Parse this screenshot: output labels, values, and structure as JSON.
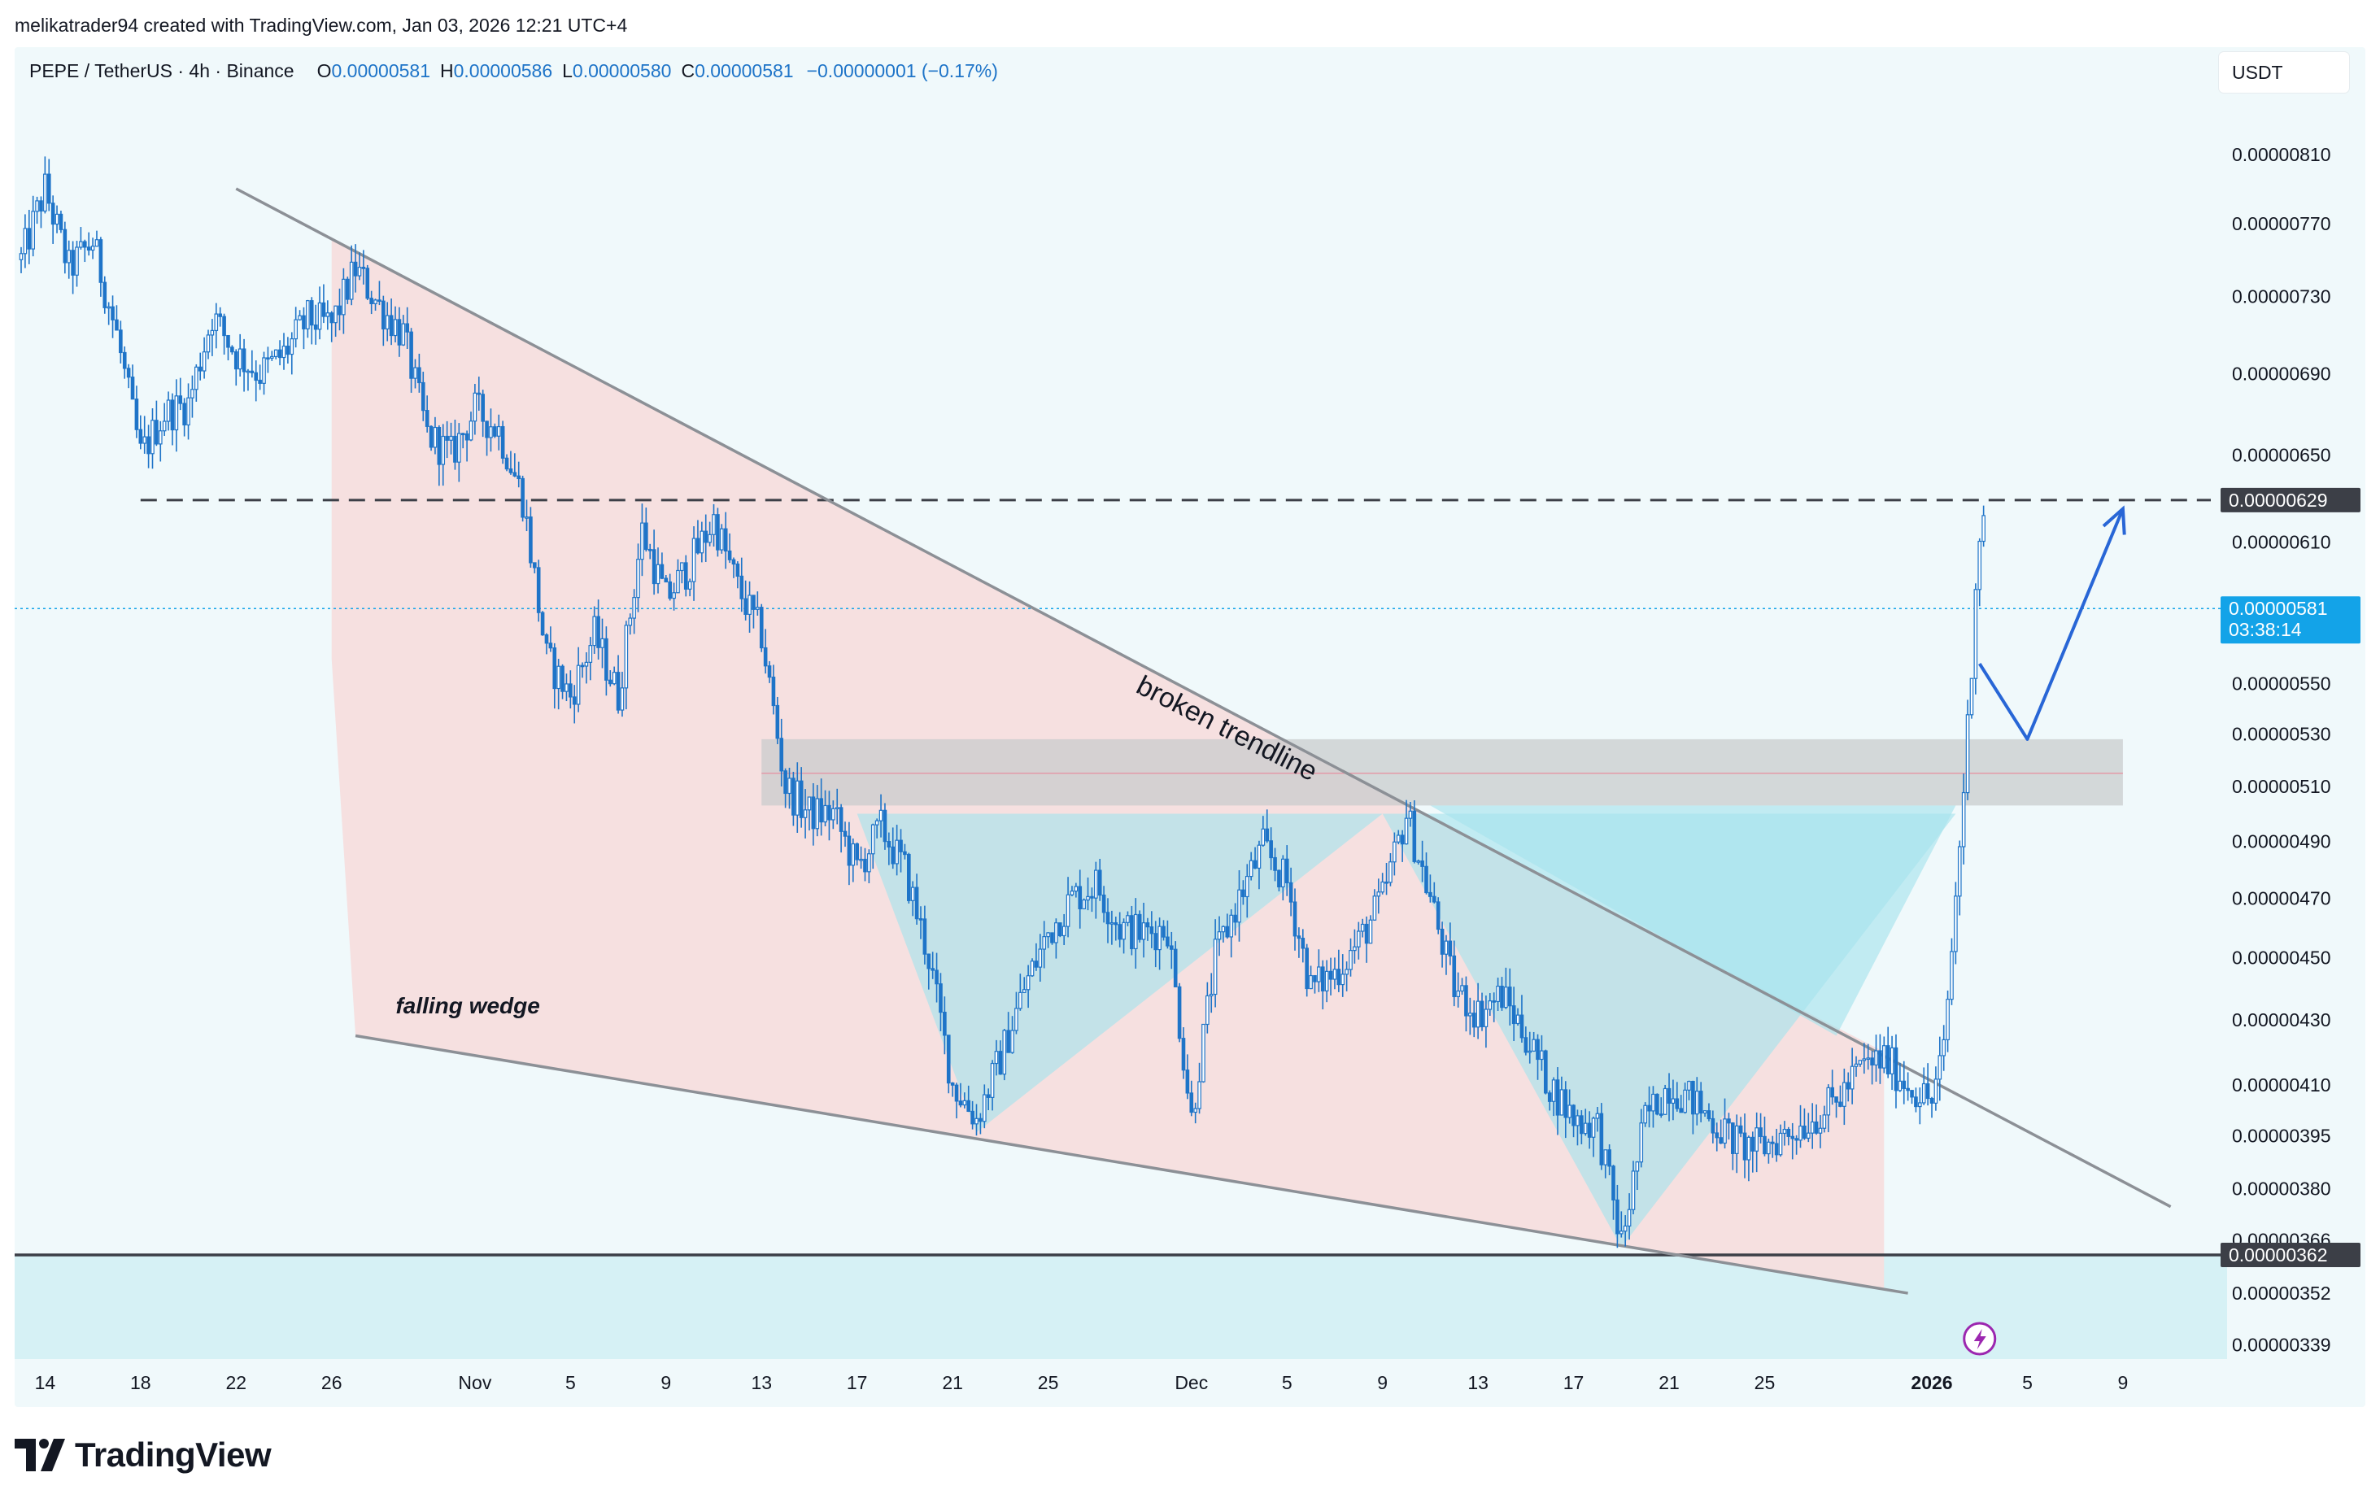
{
  "credit": "melikatrader94 created with TradingView.com, Jan 03, 2026 12:21 UTC+4",
  "legend": {
    "symbol": "PEPE / TetherUS · 4h · Binance",
    "o_label": "O",
    "o": "0.00000581",
    "h_label": "H",
    "h": "0.00000586",
    "l_label": "L",
    "l": "0.00000580",
    "c_label": "C",
    "c": "0.00000581",
    "change": "−0.00000001 (−0.17%)"
  },
  "currency": "USDT",
  "logo": "TradingView",
  "colors": {
    "up": "#1e74c8",
    "down": "#1e74c8",
    "wedge_fill": "#f6dede",
    "pattern_fill": "#a8e4ec",
    "zone_fill": "#c9cccd",
    "trendline": "#8c9096",
    "last_price_tag": "#13a3e8",
    "level_tag": "#3c3f47",
    "projection": "#2866d6"
  },
  "chart_data": {
    "type": "candlestick",
    "title": "PEPE / TetherUS · 4h · Binance",
    "timeframe": "4h",
    "y_axis": {
      "scale": "log",
      "ticks": [
        "0.00000810",
        "0.00000770",
        "0.00000730",
        "0.00000690",
        "0.00000650",
        "0.00000610",
        "0.00000550",
        "0.00000530",
        "0.00000510",
        "0.00000490",
        "0.00000470",
        "0.00000450",
        "0.00000430",
        "0.00000410",
        "0.00000395",
        "0.00000380",
        "0.00000366",
        "0.00000352",
        "0.00000339"
      ]
    },
    "x_axis": {
      "range": [
        "2025-10-13",
        "2026-01-12"
      ],
      "ticks": [
        {
          "date": "2025-10-14",
          "label": "14"
        },
        {
          "date": "2025-10-18",
          "label": "18"
        },
        {
          "date": "2025-10-22",
          "label": "22"
        },
        {
          "date": "2025-10-26",
          "label": "26"
        },
        {
          "date": "2025-11-01",
          "label": "Nov"
        },
        {
          "date": "2025-11-05",
          "label": "5"
        },
        {
          "date": "2025-11-09",
          "label": "9"
        },
        {
          "date": "2025-11-13",
          "label": "13"
        },
        {
          "date": "2025-11-17",
          "label": "17"
        },
        {
          "date": "2025-11-21",
          "label": "21"
        },
        {
          "date": "2025-11-25",
          "label": "25"
        },
        {
          "date": "2025-12-01",
          "label": "Dec"
        },
        {
          "date": "2025-12-05",
          "label": "5"
        },
        {
          "date": "2025-12-09",
          "label": "9"
        },
        {
          "date": "2025-12-13",
          "label": "13"
        },
        {
          "date": "2025-12-17",
          "label": "17"
        },
        {
          "date": "2025-12-21",
          "label": "21"
        },
        {
          "date": "2025-12-25",
          "label": "25"
        },
        {
          "date": "2026-01-01",
          "label": "2026"
        },
        {
          "date": "2026-01-05",
          "label": "5"
        },
        {
          "date": "2026-01-09",
          "label": "9"
        }
      ]
    },
    "price_path": [
      {
        "t": "2025-10-13",
        "p": 7.5e-06
      },
      {
        "t": "2025-10-14",
        "p": 7.9e-06
      },
      {
        "t": "2025-10-15",
        "p": 7.45e-06
      },
      {
        "t": "2025-10-16",
        "p": 7.6e-06
      },
      {
        "t": "2025-10-17",
        "p": 7.1e-06
      },
      {
        "t": "2025-10-18",
        "p": 6.5e-06
      },
      {
        "t": "2025-10-19",
        "p": 6.7e-06
      },
      {
        "t": "2025-10-20",
        "p": 6.75e-06
      },
      {
        "t": "2025-10-21",
        "p": 7.2e-06
      },
      {
        "t": "2025-10-22",
        "p": 7e-06
      },
      {
        "t": "2025-10-23",
        "p": 6.9e-06
      },
      {
        "t": "2025-10-24",
        "p": 7e-06
      },
      {
        "t": "2025-10-25",
        "p": 7.18e-06
      },
      {
        "t": "2025-10-26",
        "p": 7.15e-06
      },
      {
        "t": "2025-10-27",
        "p": 7.45e-06
      },
      {
        "t": "2025-10-28",
        "p": 7.25e-06
      },
      {
        "t": "2025-10-29",
        "p": 7.1e-06
      },
      {
        "t": "2025-10-30",
        "p": 6.6e-06
      },
      {
        "t": "2025-10-31",
        "p": 6.5e-06
      },
      {
        "t": "2025-11-01",
        "p": 6.72e-06
      },
      {
        "t": "2025-11-02",
        "p": 6.62e-06
      },
      {
        "t": "2025-11-03",
        "p": 6.3e-06
      },
      {
        "t": "2025-11-04",
        "p": 5.6e-06
      },
      {
        "t": "2025-11-05",
        "p": 5.45e-06
      },
      {
        "t": "2025-11-06",
        "p": 5.7e-06
      },
      {
        "t": "2025-11-07",
        "p": 5.45e-06
      },
      {
        "t": "2025-11-08",
        "p": 6.15e-06
      },
      {
        "t": "2025-11-09",
        "p": 5.85e-06
      },
      {
        "t": "2025-11-10",
        "p": 6e-06
      },
      {
        "t": "2025-11-11",
        "p": 6.2e-06
      },
      {
        "t": "2025-11-12",
        "p": 5.9e-06
      },
      {
        "t": "2025-11-13",
        "p": 5.7e-06
      },
      {
        "t": "2025-11-14",
        "p": 5.1e-06
      },
      {
        "t": "2025-11-15",
        "p": 5e-06
      },
      {
        "t": "2025-11-16",
        "p": 5e-06
      },
      {
        "t": "2025-11-17",
        "p": 4.8e-06
      },
      {
        "t": "2025-11-18",
        "p": 4.95e-06
      },
      {
        "t": "2025-11-19",
        "p": 4.8e-06
      },
      {
        "t": "2025-11-20",
        "p": 4.5e-06
      },
      {
        "t": "2025-11-21",
        "p": 4.1e-06
      },
      {
        "t": "2025-11-22",
        "p": 4e-06
      },
      {
        "t": "2025-11-23",
        "p": 4.18e-06
      },
      {
        "t": "2025-11-24",
        "p": 4.4e-06
      },
      {
        "t": "2025-11-25",
        "p": 4.58e-06
      },
      {
        "t": "2025-11-26",
        "p": 4.7e-06
      },
      {
        "t": "2025-11-27",
        "p": 4.75e-06
      },
      {
        "t": "2025-11-28",
        "p": 4.6e-06
      },
      {
        "t": "2025-11-29",
        "p": 4.58e-06
      },
      {
        "t": "2025-11-30",
        "p": 4.6e-06
      },
      {
        "t": "2025-12-01",
        "p": 4e-06
      },
      {
        "t": "2025-12-02",
        "p": 4.5e-06
      },
      {
        "t": "2025-12-03",
        "p": 4.7e-06
      },
      {
        "t": "2025-12-04",
        "p": 4.88e-06
      },
      {
        "t": "2025-12-05",
        "p": 4.75e-06
      },
      {
        "t": "2025-12-06",
        "p": 4.4e-06
      },
      {
        "t": "2025-12-07",
        "p": 4.45e-06
      },
      {
        "t": "2025-12-08",
        "p": 4.55e-06
      },
      {
        "t": "2025-12-09",
        "p": 4.7e-06
      },
      {
        "t": "2025-12-10",
        "p": 5e-06
      },
      {
        "t": "2025-12-11",
        "p": 4.7e-06
      },
      {
        "t": "2025-12-12",
        "p": 4.4e-06
      },
      {
        "t": "2025-12-13",
        "p": 4.32e-06
      },
      {
        "t": "2025-12-14",
        "p": 4.38e-06
      },
      {
        "t": "2025-12-15",
        "p": 4.25e-06
      },
      {
        "t": "2025-12-16",
        "p": 4.1e-06
      },
      {
        "t": "2025-12-17",
        "p": 4e-06
      },
      {
        "t": "2025-12-18",
        "p": 3.98e-06
      },
      {
        "t": "2025-12-19",
        "p": 3.65e-06
      },
      {
        "t": "2025-12-20",
        "p": 4e-06
      },
      {
        "t": "2025-12-21",
        "p": 4.1e-06
      },
      {
        "t": "2025-12-22",
        "p": 4.05e-06
      },
      {
        "t": "2025-12-23",
        "p": 3.98e-06
      },
      {
        "t": "2025-12-24",
        "p": 3.92e-06
      },
      {
        "t": "2025-12-25",
        "p": 3.92e-06
      },
      {
        "t": "2025-12-26",
        "p": 3.96e-06
      },
      {
        "t": "2025-12-27",
        "p": 4e-06
      },
      {
        "t": "2025-12-28",
        "p": 4.05e-06
      },
      {
        "t": "2025-12-29",
        "p": 4.15e-06
      },
      {
        "t": "2025-12-30",
        "p": 4.18e-06
      },
      {
        "t": "2025-12-31",
        "p": 4.1e-06
      },
      {
        "t": "2026-01-01",
        "p": 4.05e-06
      },
      {
        "t": "2026-01-01T12:00",
        "p": 4.2e-06
      },
      {
        "t": "2026-01-02",
        "p": 4.7e-06
      },
      {
        "t": "2026-01-02T10:00",
        "p": 5.2e-06
      },
      {
        "t": "2026-01-02T16:00",
        "p": 5.6e-06
      },
      {
        "t": "2026-01-02T22:00",
        "p": 6.1e-06
      },
      {
        "t": "2026-01-03T04:00",
        "p": 6.2e-06
      },
      {
        "t": "2026-01-03T08:00",
        "p": 5.81e-06
      }
    ],
    "last_price": "0.00000581",
    "countdown": "03:38:14",
    "levels": [
      {
        "label": "0.00000629",
        "price": 6.29e-06,
        "style": "dashed"
      },
      {
        "label": "0.00000362",
        "price": 3.62e-06,
        "style": "solid"
      }
    ],
    "falling_wedge_lines": [
      [
        {
          "t": "2025-10-22",
          "p": 7.9e-06
        },
        {
          "t": "2026-01-11",
          "p": 3.75e-06
        }
      ],
      [
        {
          "t": "2025-10-27",
          "p": 4.25e-06
        },
        {
          "t": "2025-12-31",
          "p": 3.52e-06
        }
      ]
    ],
    "resistance_zone": {
      "from": "2025-11-13",
      "to": "2026-01-09",
      "p_low": 5.03e-06,
      "p_high": 5.28e-06,
      "mid": 5.15e-06
    },
    "projection_path": [
      {
        "t": "2026-01-03",
        "p": 5.58e-06
      },
      {
        "t": "2026-01-05",
        "p": 5.28e-06
      },
      {
        "t": "2026-01-09",
        "p": 6.25e-06
      }
    ],
    "annotations": [
      {
        "text": "broken trendline"
      },
      {
        "text": "falling wedge"
      }
    ]
  }
}
